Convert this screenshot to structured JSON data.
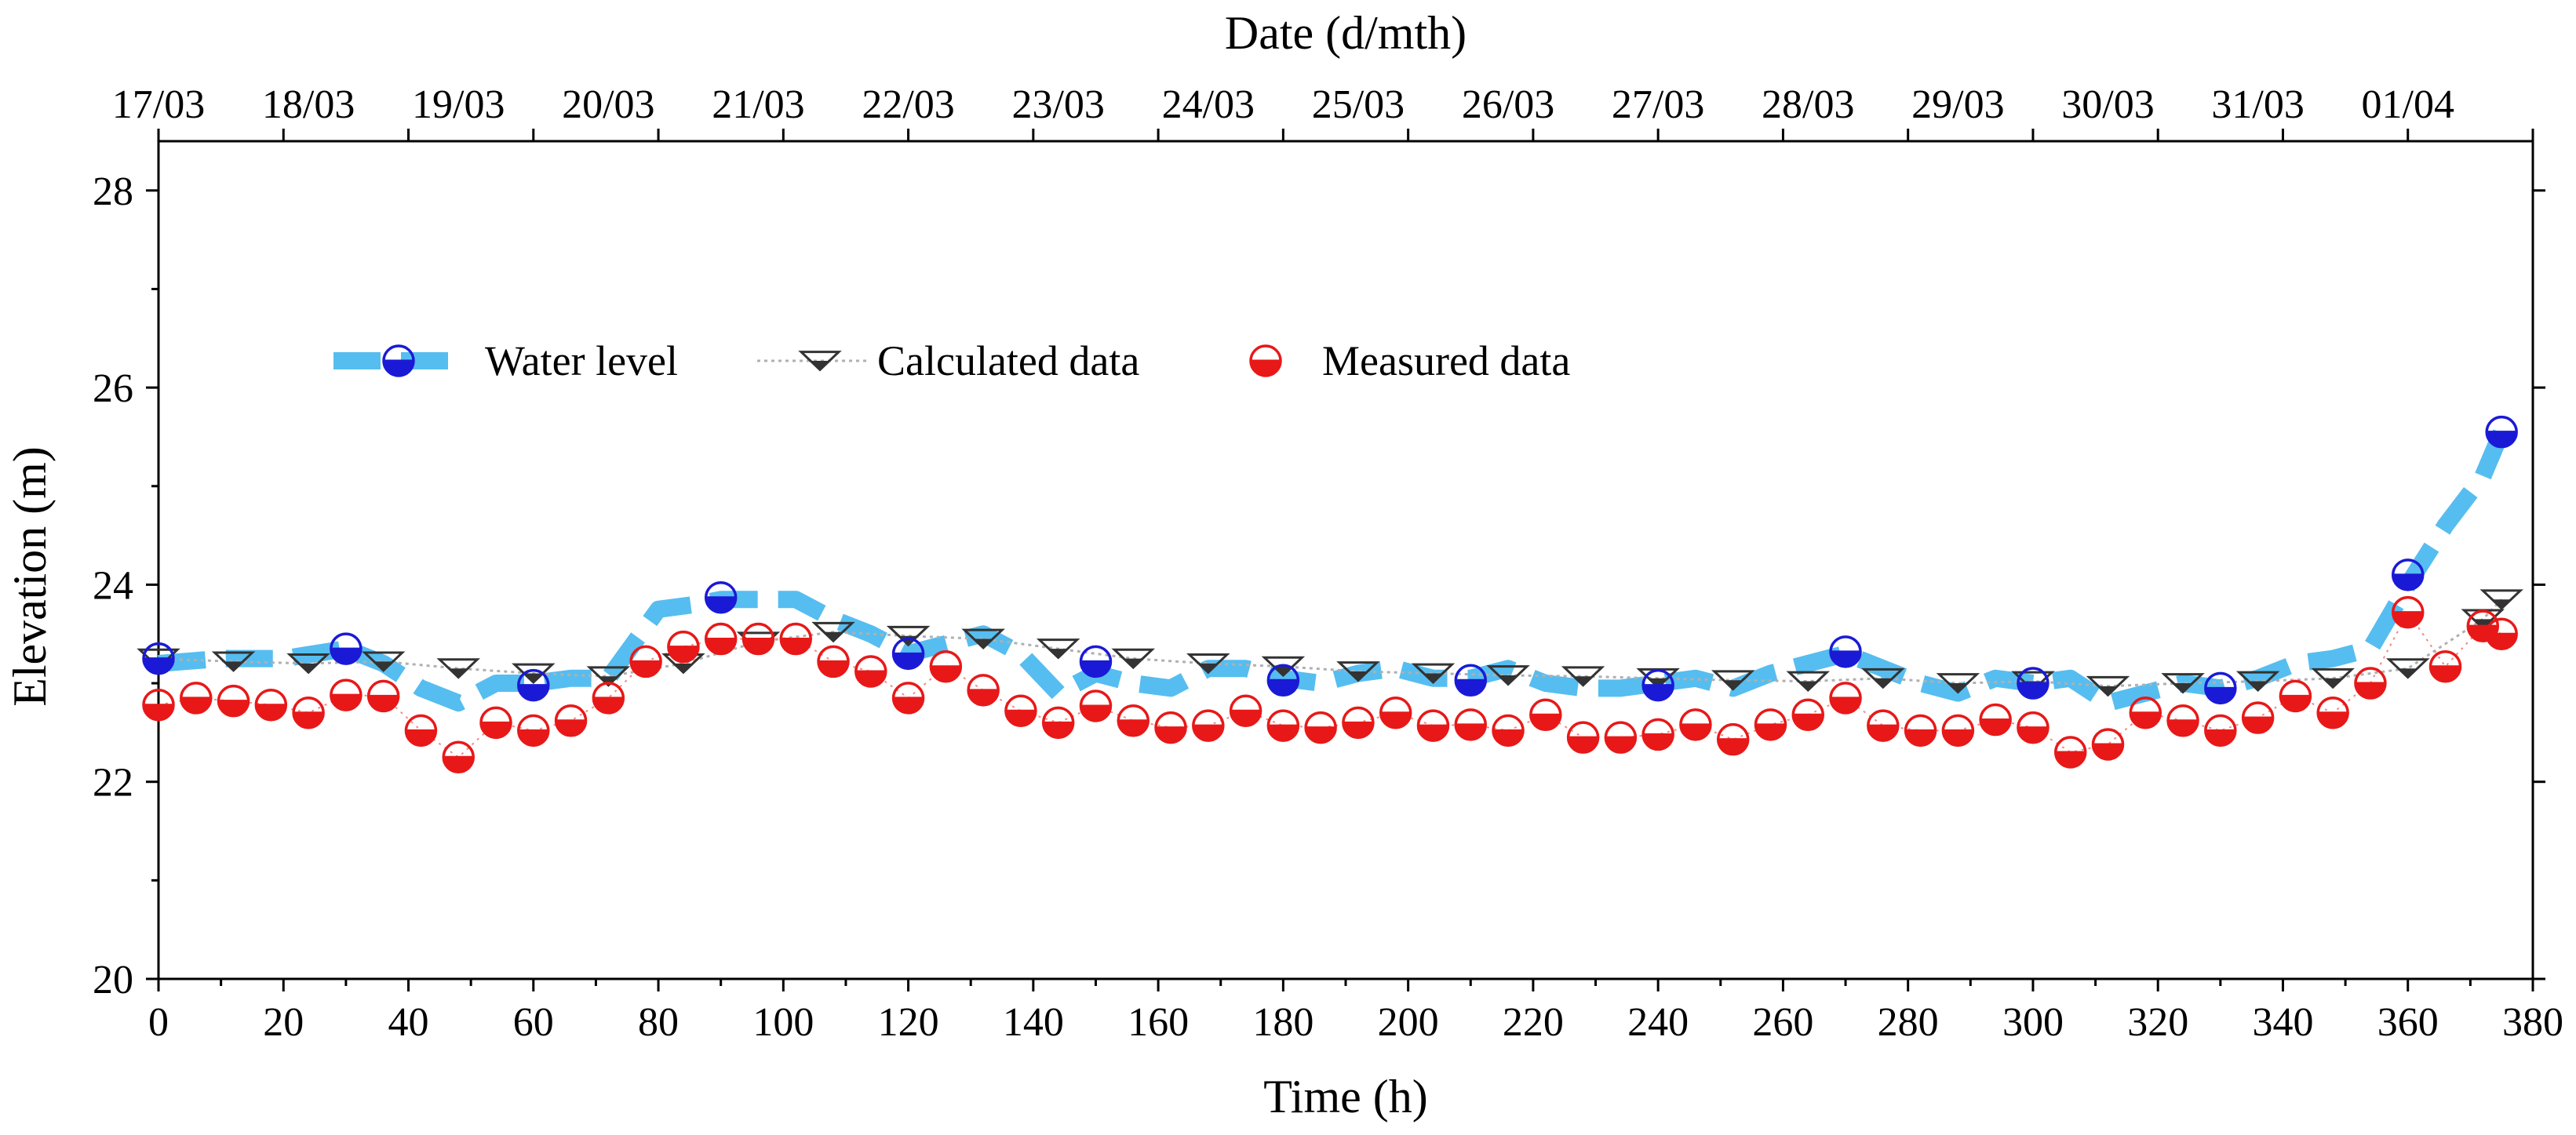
{
  "chart_data": {
    "type": "line",
    "title": "",
    "xlabel": "Time (h)",
    "ylabel": "Elevation (m)",
    "top_xlabel": "Date (d/mth)",
    "xlim": [
      0,
      380
    ],
    "ylim": [
      20,
      28.5
    ],
    "x_ticks": [
      "0",
      "20",
      "40",
      "60",
      "80",
      "100",
      "120",
      "140",
      "160",
      "180",
      "200",
      "220",
      "240",
      "260",
      "280",
      "300",
      "320",
      "340",
      "360",
      "380"
    ],
    "y_ticks": [
      "20",
      "22",
      "24",
      "26",
      "28"
    ],
    "top_ticks": [
      {
        "x": 0,
        "label": "17/03"
      },
      {
        "x": 24,
        "label": "18/03"
      },
      {
        "x": 48,
        "label": "19/03"
      },
      {
        "x": 72,
        "label": "20/03"
      },
      {
        "x": 96,
        "label": "21/03"
      },
      {
        "x": 120,
        "label": "22/03"
      },
      {
        "x": 144,
        "label": "23/03"
      },
      {
        "x": 168,
        "label": "24/03"
      },
      {
        "x": 192,
        "label": "25/03"
      },
      {
        "x": 216,
        "label": "26/03"
      },
      {
        "x": 240,
        "label": "27/03"
      },
      {
        "x": 264,
        "label": "28/03"
      },
      {
        "x": 288,
        "label": "29/03"
      },
      {
        "x": 312,
        "label": "30/03"
      },
      {
        "x": 336,
        "label": "31/03"
      },
      {
        "x": 360,
        "label": "01/04"
      }
    ],
    "legend": {
      "position": "upper-left"
    },
    "series": [
      {
        "name": "Water level",
        "color": "#56bdf0",
        "marker_color": "#1a1ad6",
        "line": [
          [
            0,
            23.2
          ],
          [
            10,
            23.25
          ],
          [
            20,
            23.25
          ],
          [
            30,
            23.35
          ],
          [
            36,
            23.2
          ],
          [
            42,
            22.95
          ],
          [
            48,
            22.8
          ],
          [
            54,
            23.0
          ],
          [
            60,
            23.0
          ],
          [
            66,
            23.05
          ],
          [
            72,
            23.05
          ],
          [
            76,
            23.4
          ],
          [
            80,
            23.75
          ],
          [
            86,
            23.8
          ],
          [
            90,
            23.85
          ],
          [
            96,
            23.85
          ],
          [
            102,
            23.85
          ],
          [
            108,
            23.65
          ],
          [
            114,
            23.5
          ],
          [
            120,
            23.3
          ],
          [
            126,
            23.4
          ],
          [
            132,
            23.5
          ],
          [
            138,
            23.3
          ],
          [
            144,
            22.9
          ],
          [
            150,
            23.1
          ],
          [
            156,
            23.0
          ],
          [
            162,
            22.95
          ],
          [
            168,
            23.15
          ],
          [
            174,
            23.15
          ],
          [
            180,
            23.05
          ],
          [
            186,
            23.0
          ],
          [
            192,
            23.1
          ],
          [
            198,
            23.15
          ],
          [
            204,
            23.05
          ],
          [
            210,
            23.05
          ],
          [
            216,
            23.15
          ],
          [
            222,
            23.0
          ],
          [
            228,
            22.95
          ],
          [
            234,
            22.95
          ],
          [
            240,
            23.0
          ],
          [
            246,
            23.05
          ],
          [
            252,
            22.95
          ],
          [
            258,
            23.1
          ],
          [
            264,
            23.2
          ],
          [
            270,
            23.3
          ],
          [
            276,
            23.15
          ],
          [
            282,
            23.0
          ],
          [
            288,
            22.9
          ],
          [
            294,
            23.05
          ],
          [
            300,
            23.0
          ],
          [
            306,
            23.05
          ],
          [
            312,
            22.8
          ],
          [
            318,
            22.9
          ],
          [
            324,
            23.0
          ],
          [
            330,
            22.95
          ],
          [
            336,
            23.05
          ],
          [
            342,
            23.2
          ],
          [
            348,
            23.25
          ],
          [
            354,
            23.35
          ],
          [
            360,
            24.0
          ],
          [
            366,
            24.6
          ],
          [
            372,
            25.1
          ],
          [
            375,
            25.55
          ]
        ],
        "markers": [
          [
            0,
            23.25
          ],
          [
            30,
            23.35
          ],
          [
            60,
            22.98
          ],
          [
            90,
            23.87
          ],
          [
            120,
            23.3
          ],
          [
            150,
            23.22
          ],
          [
            180,
            23.03
          ],
          [
            210,
            23.03
          ],
          [
            240,
            22.98
          ],
          [
            270,
            23.32
          ],
          [
            300,
            23.0
          ],
          [
            330,
            22.95
          ],
          [
            360,
            24.1
          ],
          [
            375,
            25.55
          ]
        ]
      },
      {
        "name": "Calculated data",
        "color": "#b0b0b0",
        "marker_color": "#333333",
        "points": [
          [
            0,
            23.25
          ],
          [
            12,
            23.22
          ],
          [
            24,
            23.2
          ],
          [
            36,
            23.22
          ],
          [
            48,
            23.15
          ],
          [
            60,
            23.1
          ],
          [
            72,
            23.07
          ],
          [
            84,
            23.2
          ],
          [
            96,
            23.42
          ],
          [
            108,
            23.52
          ],
          [
            120,
            23.48
          ],
          [
            132,
            23.45
          ],
          [
            144,
            23.35
          ],
          [
            156,
            23.25
          ],
          [
            168,
            23.2
          ],
          [
            180,
            23.17
          ],
          [
            192,
            23.12
          ],
          [
            204,
            23.1
          ],
          [
            216,
            23.08
          ],
          [
            228,
            23.07
          ],
          [
            240,
            23.05
          ],
          [
            252,
            23.03
          ],
          [
            264,
            23.02
          ],
          [
            276,
            23.05
          ],
          [
            288,
            23.0
          ],
          [
            300,
            23.02
          ],
          [
            312,
            22.97
          ],
          [
            324,
            23.0
          ],
          [
            336,
            23.02
          ],
          [
            348,
            23.05
          ],
          [
            360,
            23.15
          ],
          [
            372,
            23.65
          ],
          [
            375,
            23.85
          ]
        ]
      },
      {
        "name": "Measured data",
        "color": "#e81818",
        "points": [
          [
            0,
            22.78
          ],
          [
            6,
            22.85
          ],
          [
            12,
            22.82
          ],
          [
            18,
            22.78
          ],
          [
            24,
            22.7
          ],
          [
            30,
            22.88
          ],
          [
            36,
            22.87
          ],
          [
            42,
            22.52
          ],
          [
            48,
            22.25
          ],
          [
            54,
            22.6
          ],
          [
            60,
            22.52
          ],
          [
            66,
            22.62
          ],
          [
            72,
            22.85
          ],
          [
            78,
            23.22
          ],
          [
            84,
            23.37
          ],
          [
            90,
            23.45
          ],
          [
            96,
            23.45
          ],
          [
            102,
            23.45
          ],
          [
            108,
            23.22
          ],
          [
            114,
            23.12
          ],
          [
            120,
            22.85
          ],
          [
            126,
            23.17
          ],
          [
            132,
            22.93
          ],
          [
            138,
            22.72
          ],
          [
            144,
            22.6
          ],
          [
            150,
            22.77
          ],
          [
            156,
            22.62
          ],
          [
            162,
            22.55
          ],
          [
            168,
            22.57
          ],
          [
            174,
            22.72
          ],
          [
            180,
            22.57
          ],
          [
            186,
            22.55
          ],
          [
            192,
            22.6
          ],
          [
            198,
            22.7
          ],
          [
            204,
            22.57
          ],
          [
            210,
            22.58
          ],
          [
            216,
            22.52
          ],
          [
            222,
            22.68
          ],
          [
            228,
            22.45
          ],
          [
            234,
            22.45
          ],
          [
            240,
            22.48
          ],
          [
            246,
            22.58
          ],
          [
            252,
            22.43
          ],
          [
            258,
            22.58
          ],
          [
            264,
            22.68
          ],
          [
            270,
            22.85
          ],
          [
            276,
            22.57
          ],
          [
            282,
            22.52
          ],
          [
            288,
            22.52
          ],
          [
            294,
            22.63
          ],
          [
            300,
            22.55
          ],
          [
            306,
            22.3
          ],
          [
            312,
            22.38
          ],
          [
            318,
            22.7
          ],
          [
            324,
            22.62
          ],
          [
            330,
            22.52
          ],
          [
            336,
            22.65
          ],
          [
            342,
            22.87
          ],
          [
            348,
            22.7
          ],
          [
            354,
            23.0
          ],
          [
            360,
            23.72
          ],
          [
            366,
            23.17
          ],
          [
            372,
            23.58
          ],
          [
            375,
            23.5
          ]
        ]
      }
    ]
  }
}
